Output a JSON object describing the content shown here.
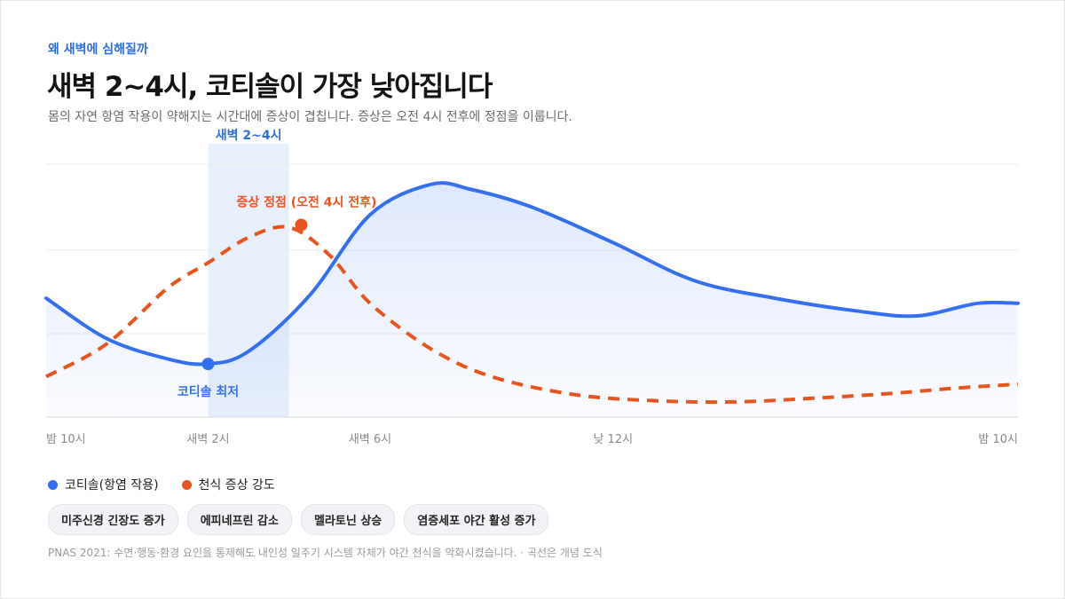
{
  "header": {
    "eyebrow": "왜 새벽에 심해질까",
    "title": "새벽 2~4시, 코티솔이 가장 낮아집니다",
    "subtitle": "몸의 자연 항염 작용이 약해지는 시간대에 증상이 겹칩니다. 증상은 오전 4시 전후에 정점을 이룹니다."
  },
  "chart_data": {
    "type": "line",
    "x_ticks": [
      {
        "label": "밤 10시",
        "x": 0
      },
      {
        "label": "새벽 2시",
        "x": 4
      },
      {
        "label": "새벽 6시",
        "x": 8
      },
      {
        "label": "낮 12시",
        "x": 14
      },
      {
        "label": "밤 10시",
        "x": 24
      }
    ],
    "xlim": [
      0,
      24
    ],
    "ylim": [
      0,
      100
    ],
    "series": [
      {
        "name": "코티솔(항염 작용)",
        "style": "solid-area",
        "color": "#3370f0",
        "points": [
          [
            0,
            47
          ],
          [
            1.5,
            31
          ],
          [
            3,
            23
          ],
          [
            4,
            21
          ],
          [
            5,
            26
          ],
          [
            6.5,
            48
          ],
          [
            8,
            80
          ],
          [
            9.5,
            92
          ],
          [
            10.5,
            90
          ],
          [
            12,
            83
          ],
          [
            14,
            69
          ],
          [
            16,
            54
          ],
          [
            18,
            47
          ],
          [
            20,
            42
          ],
          [
            21.5,
            40
          ],
          [
            23,
            45
          ],
          [
            24,
            45
          ]
        ]
      },
      {
        "name": "천식 증상 강도",
        "style": "dashed",
        "color": "#e8531e",
        "points": [
          [
            0,
            16
          ],
          [
            1.5,
            29
          ],
          [
            3,
            51
          ],
          [
            4,
            61
          ],
          [
            5,
            71
          ],
          [
            6,
            75
          ],
          [
            7,
            64
          ],
          [
            8,
            45
          ],
          [
            9.5,
            27
          ],
          [
            11,
            16
          ],
          [
            13,
            9
          ],
          [
            15,
            6.5
          ],
          [
            17,
            6
          ],
          [
            19,
            7.5
          ],
          [
            21,
            9.5
          ],
          [
            22.5,
            11.5
          ],
          [
            24,
            13
          ]
        ]
      }
    ],
    "highlight_band": {
      "from": 4,
      "to": 6,
      "label": "새벽 2~4시"
    },
    "annotations": [
      {
        "label": "증상 정점 (오전 4시 전후)",
        "series": 1,
        "x": 6.3,
        "y": 76,
        "color": "#e8531e",
        "position": "above"
      },
      {
        "label": "코티솔 최저",
        "series": 0,
        "x": 4,
        "y": 21,
        "color": "#3370f0",
        "position": "below"
      }
    ],
    "gridlines": [
      33,
      66,
      100
    ]
  },
  "legend": [
    {
      "label": "코티솔(항염 작용)",
      "color": "#3370f0"
    },
    {
      "label": "천식 증상 강도",
      "color": "#e8531e"
    }
  ],
  "chips": [
    "미주신경 긴장도 증가",
    "에피네프린 감소",
    "멜라토닌 상승",
    "염증세포 야간 활성 증가"
  ],
  "footnote": "PNAS 2021: 수면·행동·환경 요인을 통제해도 내인성 일주기 시스템 자체가 야간 천식을 악화시켰습니다. · 곡선은 개념 도식"
}
